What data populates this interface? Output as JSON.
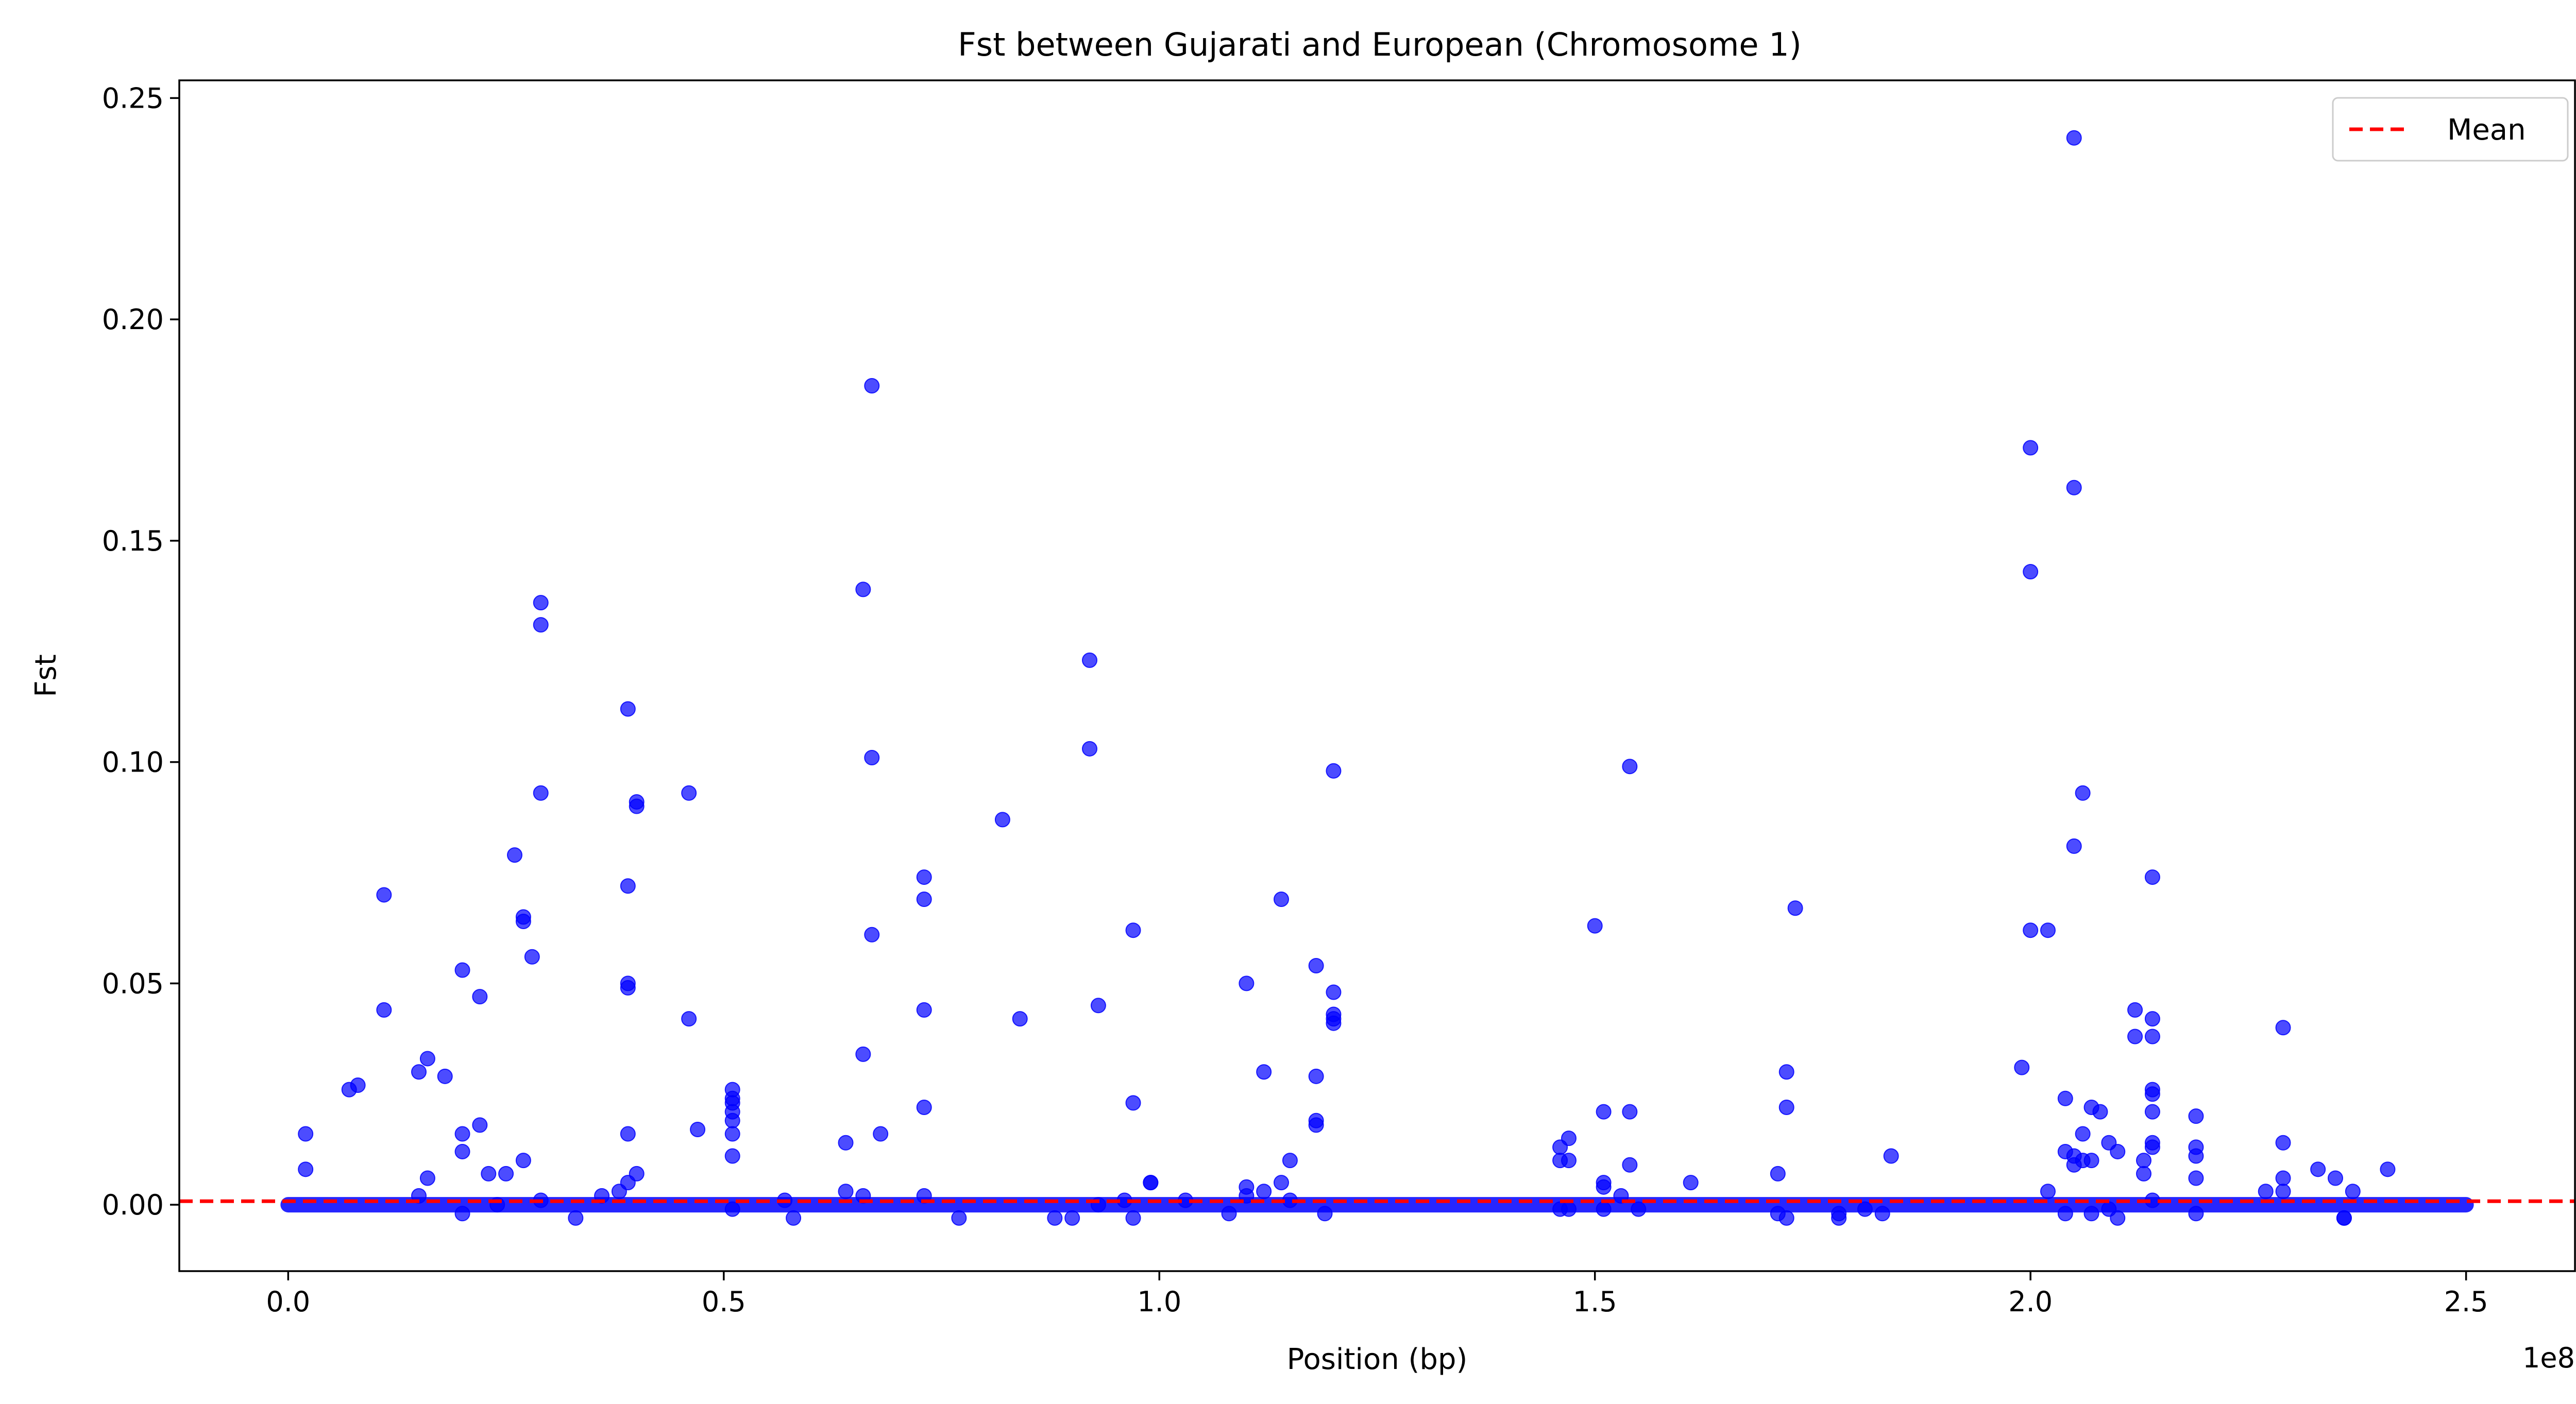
{
  "chart_data": {
    "type": "scatter",
    "title": "Fst between Gujarati and European (Chromosome 1)",
    "xlabel": "Position (bp)",
    "ylabel": "Fst",
    "x_offset_label": "1e8",
    "xlim": [
      -12500000,
      262500000
    ],
    "ylim": [
      -0.015,
      0.254
    ],
    "x_ticks": [
      0,
      50000000,
      100000000,
      150000000,
      200000000,
      250000000
    ],
    "x_tick_labels": [
      "0.0",
      "0.5",
      "1.0",
      "1.5",
      "2.0",
      "2.5"
    ],
    "y_ticks": [
      0,
      0.05,
      0.1,
      0.15,
      0.2,
      0.25
    ],
    "y_tick_labels": [
      "0.00",
      "0.05",
      "0.10",
      "0.15",
      "0.20",
      "0.25"
    ],
    "grid": false,
    "legend_position": "top-right",
    "baseline_range": [
      0,
      250000000
    ],
    "series": [
      {
        "color": "#0000ff",
        "points": [
          [
            2000000,
            0.016
          ],
          [
            2000000,
            0.008
          ],
          [
            7000000,
            0.026
          ],
          [
            8000000,
            0.027
          ],
          [
            11000000,
            0.07
          ],
          [
            11000000,
            0.044
          ],
          [
            15000000,
            0.03
          ],
          [
            16000000,
            0.033
          ],
          [
            18000000,
            0.029
          ],
          [
            16000000,
            0.006
          ],
          [
            15000000,
            0.002
          ],
          [
            20000000,
            0.053
          ],
          [
            22000000,
            0.047
          ],
          [
            22000000,
            0.018
          ],
          [
            20000000,
            0.016
          ],
          [
            20000000,
            0.012
          ],
          [
            23000000,
            0.007
          ],
          [
            25000000,
            0.007
          ],
          [
            20000000,
            -0.002
          ],
          [
            24000000,
            0.0
          ],
          [
            26000000,
            0.079
          ],
          [
            27000000,
            0.065
          ],
          [
            27000000,
            0.064
          ],
          [
            28000000,
            0.056
          ],
          [
            29000000,
            0.136
          ],
          [
            29000000,
            0.131
          ],
          [
            29000000,
            0.093
          ],
          [
            27000000,
            0.01
          ],
          [
            29000000,
            0.001
          ],
          [
            33000000,
            -0.003
          ],
          [
            36000000,
            0.002
          ],
          [
            39000000,
            0.112
          ],
          [
            40000000,
            0.091
          ],
          [
            40000000,
            0.09
          ],
          [
            39000000,
            0.072
          ],
          [
            39000000,
            0.05
          ],
          [
            39000000,
            0.049
          ],
          [
            39000000,
            0.016
          ],
          [
            40000000,
            0.007
          ],
          [
            39000000,
            0.005
          ],
          [
            38000000,
            0.003
          ],
          [
            46000000,
            0.093
          ],
          [
            46000000,
            0.042
          ],
          [
            47000000,
            0.017
          ],
          [
            51000000,
            0.026
          ],
          [
            51000000,
            0.024
          ],
          [
            51000000,
            0.023
          ],
          [
            51000000,
            0.021
          ],
          [
            51000000,
            0.019
          ],
          [
            51000000,
            0.016
          ],
          [
            51000000,
            0.011
          ],
          [
            51000000,
            -0.001
          ],
          [
            57000000,
            0.001
          ],
          [
            58000000,
            -0.003
          ],
          [
            64000000,
            0.014
          ],
          [
            64000000,
            0.003
          ],
          [
            66000000,
            0.139
          ],
          [
            66000000,
            0.034
          ],
          [
            66000000,
            0.002
          ],
          [
            67000000,
            0.185
          ],
          [
            67000000,
            0.101
          ],
          [
            67000000,
            0.061
          ],
          [
            68000000,
            0.016
          ],
          [
            73000000,
            0.074
          ],
          [
            73000000,
            0.069
          ],
          [
            73000000,
            0.022
          ],
          [
            73000000,
            0.044
          ],
          [
            73000000,
            0.002
          ],
          [
            77000000,
            -0.003
          ],
          [
            82000000,
            0.087
          ],
          [
            84000000,
            0.042
          ],
          [
            88000000,
            -0.003
          ],
          [
            90000000,
            -0.003
          ],
          [
            92000000,
            0.123
          ],
          [
            92000000,
            0.103
          ],
          [
            93000000,
            0.045
          ],
          [
            93000000,
            0.0
          ],
          [
            97000000,
            0.062
          ],
          [
            97000000,
            0.023
          ],
          [
            97000000,
            -0.003
          ],
          [
            96000000,
            0.001
          ],
          [
            99000000,
            0.005
          ],
          [
            99000000,
            0.005
          ],
          [
            103000000,
            0.001
          ],
          [
            108000000,
            -0.002
          ],
          [
            110000000,
            0.05
          ],
          [
            110000000,
            0.004
          ],
          [
            110000000,
            0.002
          ],
          [
            112000000,
            0.03
          ],
          [
            112000000,
            0.003
          ],
          [
            114000000,
            0.069
          ],
          [
            114000000,
            0.005
          ],
          [
            115000000,
            0.01
          ],
          [
            115000000,
            0.001
          ],
          [
            118000000,
            0.054
          ],
          [
            118000000,
            0.029
          ],
          [
            118000000,
            0.019
          ],
          [
            118000000,
            0.018
          ],
          [
            119000000,
            -0.002
          ],
          [
            120000000,
            0.098
          ],
          [
            120000000,
            0.048
          ],
          [
            120000000,
            0.043
          ],
          [
            120000000,
            0.042
          ],
          [
            120000000,
            0.041
          ],
          [
            147000000,
            0.015
          ],
          [
            146000000,
            0.013
          ],
          [
            146000000,
            0.01
          ],
          [
            147000000,
            0.01
          ],
          [
            146000000,
            -0.001
          ],
          [
            147000000,
            -0.001
          ],
          [
            150000000,
            0.063
          ],
          [
            151000000,
            0.021
          ],
          [
            151000000,
            0.005
          ],
          [
            151000000,
            0.004
          ],
          [
            151000000,
            -0.001
          ],
          [
            153000000,
            0.002
          ],
          [
            154000000,
            0.099
          ],
          [
            154000000,
            0.021
          ],
          [
            154000000,
            0.009
          ],
          [
            155000000,
            -0.001
          ],
          [
            161000000,
            0.005
          ],
          [
            171000000,
            0.007
          ],
          [
            171000000,
            -0.002
          ],
          [
            172000000,
            0.03
          ],
          [
            172000000,
            0.022
          ],
          [
            172000000,
            -0.003
          ],
          [
            173000000,
            0.067
          ],
          [
            178000000,
            -0.003
          ],
          [
            178000000,
            -0.002
          ],
          [
            181000000,
            -0.001
          ],
          [
            183000000,
            -0.002
          ],
          [
            184000000,
            0.011
          ],
          [
            199000000,
            0.031
          ],
          [
            200000000,
            0.171
          ],
          [
            200000000,
            0.143
          ],
          [
            200000000,
            0.062
          ],
          [
            202000000,
            0.062
          ],
          [
            202000000,
            0.003
          ],
          [
            204000000,
            0.024
          ],
          [
            204000000,
            0.012
          ],
          [
            205000000,
            0.241
          ],
          [
            205000000,
            0.162
          ],
          [
            205000000,
            0.081
          ],
          [
            206000000,
            0.093
          ],
          [
            205000000,
            0.011
          ],
          [
            205000000,
            0.009
          ],
          [
            204000000,
            -0.002
          ],
          [
            206000000,
            0.016
          ],
          [
            206000000,
            0.01
          ],
          [
            207000000,
            0.022
          ],
          [
            207000000,
            0.01
          ],
          [
            207000000,
            -0.002
          ],
          [
            208000000,
            0.021
          ],
          [
            209000000,
            0.014
          ],
          [
            209000000,
            -0.001
          ],
          [
            210000000,
            0.012
          ],
          [
            210000000,
            -0.003
          ],
          [
            212000000,
            0.044
          ],
          [
            212000000,
            0.038
          ],
          [
            213000000,
            0.01
          ],
          [
            214000000,
            0.074
          ],
          [
            214000000,
            0.042
          ],
          [
            214000000,
            0.038
          ],
          [
            214000000,
            0.026
          ],
          [
            214000000,
            0.025
          ],
          [
            214000000,
            0.021
          ],
          [
            214000000,
            0.014
          ],
          [
            214000000,
            0.013
          ],
          [
            213000000,
            0.007
          ],
          [
            214000000,
            0.001
          ],
          [
            219000000,
            0.02
          ],
          [
            219000000,
            0.013
          ],
          [
            219000000,
            0.011
          ],
          [
            219000000,
            0.006
          ],
          [
            219000000,
            -0.002
          ],
          [
            227000000,
            0.003
          ],
          [
            229000000,
            0.04
          ],
          [
            229000000,
            0.014
          ],
          [
            229000000,
            0.006
          ],
          [
            229000000,
            0.003
          ],
          [
            233000000,
            0.008
          ],
          [
            235000000,
            0.006
          ],
          [
            236000000,
            -0.003
          ],
          [
            236000000,
            -0.003
          ],
          [
            237000000,
            0.003
          ],
          [
            241000000,
            0.008
          ]
        ]
      }
    ],
    "mean_line": {
      "label": "Mean",
      "value": 0.0008,
      "color": "#ff0000"
    }
  }
}
